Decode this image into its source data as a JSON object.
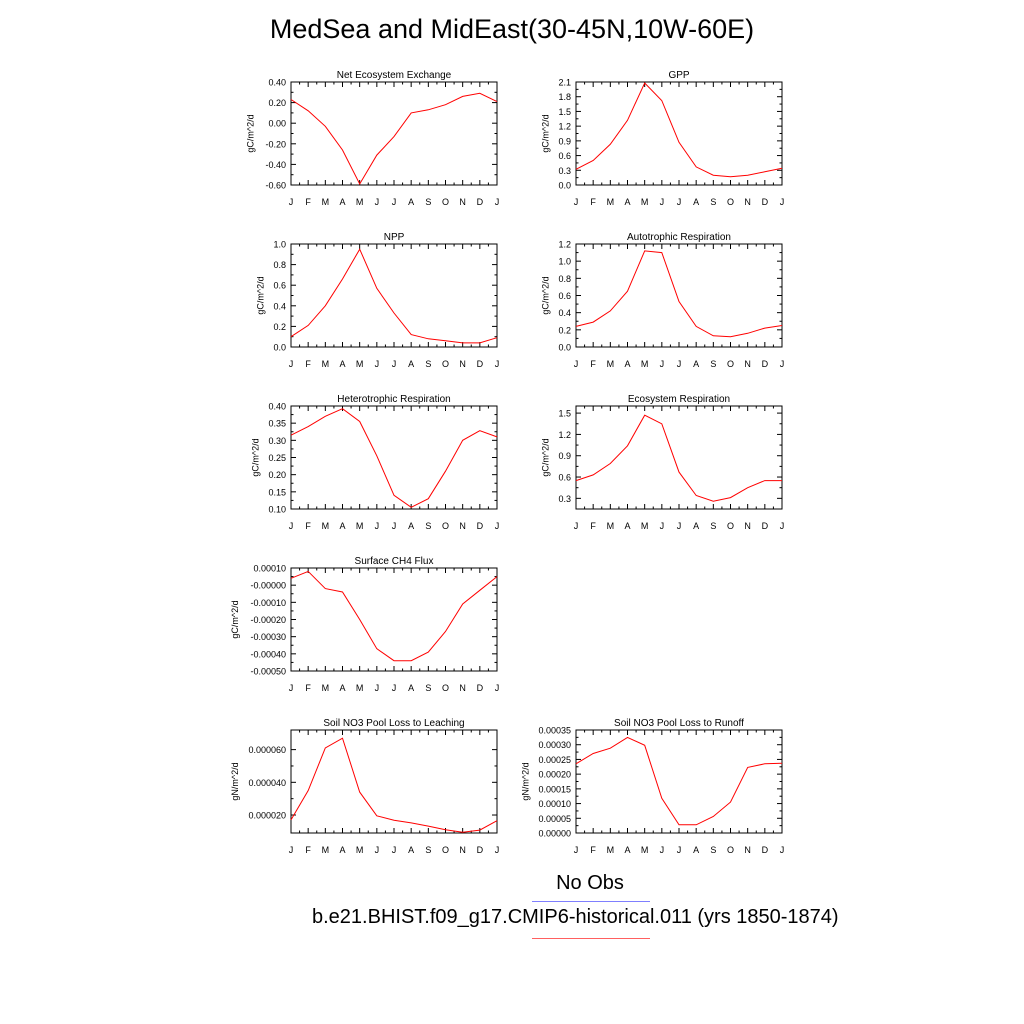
{
  "title": "MedSea and MidEast(30-45N,10W-60E)",
  "months": [
    "J",
    "F",
    "M",
    "A",
    "M",
    "J",
    "J",
    "A",
    "S",
    "O",
    "N",
    "D",
    "J"
  ],
  "chart_data": [
    {
      "type": "line",
      "title": "Net Ecosystem Exchange",
      "ylabel": "gC/m^2/d",
      "ylim": [
        -0.6,
        0.4
      ],
      "yticks": [
        -0.6,
        -0.4,
        -0.2,
        0.0,
        0.2,
        0.4
      ],
      "yticklabels": [
        "-0.60",
        "-0.40",
        "-0.20",
        "0.00",
        "0.20",
        "0.40"
      ],
      "values": [
        0.23,
        0.12,
        -0.03,
        -0.26,
        -0.59,
        -0.31,
        -0.13,
        0.1,
        0.13,
        0.18,
        0.26,
        0.29,
        0.21
      ]
    },
    {
      "type": "line",
      "title": "GPP",
      "ylabel": "gC/m^2/d",
      "ylim": [
        0.0,
        2.1
      ],
      "yticks": [
        0.0,
        0.3,
        0.6,
        0.9,
        1.2,
        1.5,
        1.8,
        2.1
      ],
      "yticklabels": [
        "0.0",
        "0.3",
        "0.6",
        "0.9",
        "1.2",
        "1.5",
        "1.8",
        "2.1"
      ],
      "values": [
        0.32,
        0.5,
        0.83,
        1.32,
        2.08,
        1.72,
        0.87,
        0.37,
        0.2,
        0.17,
        0.2,
        0.27,
        0.34
      ]
    },
    {
      "type": "line",
      "title": "NPP",
      "ylabel": "gC/m^2/d",
      "ylim": [
        0.0,
        1.0
      ],
      "yticks": [
        0.0,
        0.2,
        0.4,
        0.6,
        0.8,
        1.0
      ],
      "yticklabels": [
        "0.0",
        "0.2",
        "0.4",
        "0.6",
        "0.8",
        "1.0"
      ],
      "values": [
        0.1,
        0.21,
        0.4,
        0.66,
        0.95,
        0.57,
        0.33,
        0.12,
        0.08,
        0.06,
        0.04,
        0.04,
        0.09
      ]
    },
    {
      "type": "line",
      "title": "Autotrophic Respiration",
      "ylabel": "gC/m^2/d",
      "ylim": [
        0.0,
        1.2
      ],
      "yticks": [
        0.0,
        0.2,
        0.4,
        0.6,
        0.8,
        1.0,
        1.2
      ],
      "yticklabels": [
        "0.0",
        "0.2",
        "0.4",
        "0.6",
        "0.8",
        "1.0",
        "1.2"
      ],
      "values": [
        0.24,
        0.29,
        0.42,
        0.65,
        1.12,
        1.1,
        0.53,
        0.24,
        0.13,
        0.12,
        0.16,
        0.22,
        0.25
      ]
    },
    {
      "type": "line",
      "title": "Heterotrophic Respiration",
      "ylabel": "gC/m^2/d",
      "ylim": [
        0.1,
        0.4
      ],
      "yticks": [
        0.1,
        0.15,
        0.2,
        0.25,
        0.3,
        0.35,
        0.4
      ],
      "yticklabels": [
        "0.10",
        "0.15",
        "0.20",
        "0.25",
        "0.30",
        "0.35",
        "0.40"
      ],
      "values": [
        0.315,
        0.34,
        0.37,
        0.392,
        0.355,
        0.255,
        0.14,
        0.105,
        0.13,
        0.21,
        0.3,
        0.328,
        0.31
      ]
    },
    {
      "type": "line",
      "title": "Ecosystem Respiration",
      "ylabel": "gC/m^2/d",
      "ylim": [
        0.15,
        1.6
      ],
      "yticks": [
        0.3,
        0.6,
        0.9,
        1.2,
        1.5
      ],
      "yticklabels": [
        "0.3",
        "0.6",
        "0.9",
        "1.2",
        "1.5"
      ],
      "values": [
        0.55,
        0.63,
        0.79,
        1.04,
        1.47,
        1.35,
        0.67,
        0.34,
        0.26,
        0.31,
        0.45,
        0.55,
        0.55
      ]
    },
    {
      "type": "line",
      "title": "Surface CH4 Flux",
      "ylabel": "gC/m^2/d",
      "ylim": [
        -0.0005,
        0.0001
      ],
      "yticks": [
        -0.0005,
        -0.0004,
        -0.0003,
        -0.0002,
        -0.0001,
        0.0,
        0.0001
      ],
      "yticklabels": [
        "-0.00050",
        "-0.00040",
        "-0.00030",
        "-0.00020",
        "-0.00010",
        "-0.00000",
        "0.00010"
      ],
      "values": [
        4e-05,
        8e-05,
        -2e-05,
        -4e-05,
        -0.0002,
        -0.00037,
        -0.00044,
        -0.00044,
        -0.00039,
        -0.00027,
        -0.00011,
        -3e-05,
        5e-05
      ]
    },
    {
      "type": "line",
      "title": "Soil NO3 Pool Loss to Leaching",
      "ylabel": "gN/m^2/d",
      "ylim": [
        9e-06,
        7.2e-05
      ],
      "yticks": [
        2e-05,
        4e-05,
        6e-05
      ],
      "yticklabels": [
        "0.000020",
        "0.000040",
        "0.000060"
      ],
      "values": [
        1.7e-05,
        3.5e-05,
        6.1e-05,
        6.7e-05,
        3.4e-05,
        1.95e-05,
        1.68e-05,
        1.52e-05,
        1.32e-05,
        1.1e-05,
        9.5e-06,
        1.08e-05,
        1.65e-05
      ]
    },
    {
      "type": "line",
      "title": "Soil NO3 Pool Loss to Runoff",
      "ylabel": "gN/m^2/d",
      "ylim": [
        0.0,
        0.00035
      ],
      "yticks": [
        0.0,
        5e-05,
        0.0001,
        0.00015,
        0.0002,
        0.00025,
        0.0003,
        0.00035
      ],
      "yticklabels": [
        "0.00000",
        "0.00005",
        "0.00010",
        "0.00015",
        "0.00020",
        "0.00025",
        "0.00030",
        "0.00035"
      ],
      "values": [
        0.000235,
        0.00027,
        0.000288,
        0.000325,
        0.000298,
        0.000118,
        2.8e-05,
        2.8e-05,
        5.6e-05,
        0.000105,
        0.000223,
        0.000235,
        0.000237
      ]
    }
  ],
  "legend": [
    {
      "label": "No Obs",
      "color": "#7f7fff"
    },
    {
      "label": "b.e21.BHIST.f09_g17.CMIP6-historical.011 (yrs 1850-1874)",
      "color": "#ff0000"
    }
  ]
}
